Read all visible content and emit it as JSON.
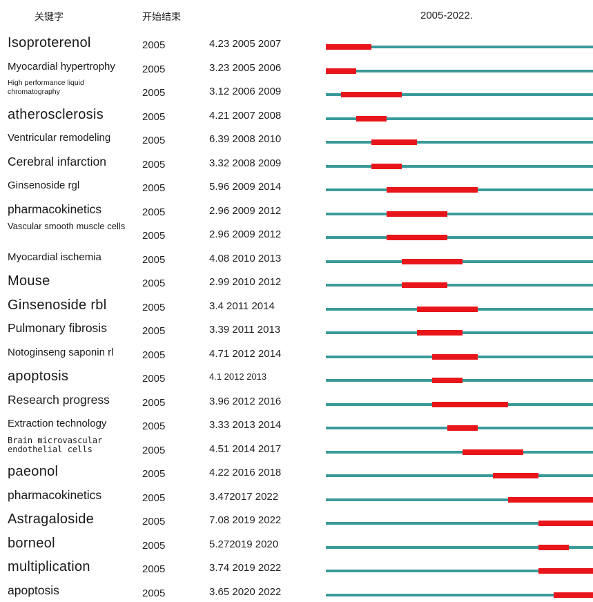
{
  "header": {
    "keyword_col": "关键字",
    "start_end_col": "开始结束",
    "range_label": "2005-2022."
  },
  "colors": {
    "timeline": "#3a9a9a",
    "burst": "#e8161b"
  },
  "chart_data": {
    "type": "bar",
    "x_range": [
      2005,
      2022
    ],
    "rows": [
      {
        "keyword": "Isoproterenol",
        "year": "2005",
        "stat": "4.23 2005 2007",
        "strength": 4.23,
        "begin": 2005,
        "end": 2007
      },
      {
        "keyword": "Myocardial hypertrophy",
        "year": "2005",
        "stat": "3.23 2005 2006",
        "strength": 3.23,
        "begin": 2005,
        "end": 2006
      },
      {
        "keyword": "High performance liquid chromatography",
        "year": "2005",
        "stat": "3.12 2006 2009",
        "strength": 3.12,
        "begin": 2006,
        "end": 2009
      },
      {
        "keyword": "atherosclerosis",
        "year": "2005",
        "stat": "4.21 2007 2008",
        "strength": 4.21,
        "begin": 2007,
        "end": 2008
      },
      {
        "keyword": "Ventricular remodeling",
        "year": "2005",
        "stat": "6.39 2008 2010",
        "strength": 6.39,
        "begin": 2008,
        "end": 2010
      },
      {
        "keyword": "Cerebral infarction",
        "year": "2005",
        "stat": "3.32 2008 2009",
        "strength": 3.32,
        "begin": 2008,
        "end": 2009
      },
      {
        "keyword": "Ginsenoside rgl",
        "year": "2005",
        "stat": "5.96 2009 2014",
        "strength": 5.96,
        "begin": 2009,
        "end": 2014
      },
      {
        "keyword": "pharmacokinetics",
        "year": "2005",
        "stat": "2.96 2009 2012",
        "strength": 2.96,
        "begin": 2009,
        "end": 2012
      },
      {
        "keyword": "Vascular smooth muscle cells",
        "year": "2005",
        "stat": "2.96 2009 2012",
        "strength": 2.96,
        "begin": 2009,
        "end": 2012
      },
      {
        "keyword": "Myocardial ischemia",
        "year": "2005",
        "stat": "4.08 2010 2013",
        "strength": 4.08,
        "begin": 2010,
        "end": 2013
      },
      {
        "keyword": "Mouse",
        "year": "2005",
        "stat": "2.99 2010 2012",
        "strength": 2.99,
        "begin": 2010,
        "end": 2012
      },
      {
        "keyword": "Ginsenoside rbl",
        "year": "2005",
        "stat": "3.4 2011 2014",
        "strength": 3.4,
        "begin": 2011,
        "end": 2014
      },
      {
        "keyword": "Pulmonary fibrosis",
        "year": "2005",
        "stat": "3.39 2011 2013",
        "strength": 3.39,
        "begin": 2011,
        "end": 2013
      },
      {
        "keyword": "Notoginseng saponin rl",
        "year": "2005",
        "stat": "4.71 2012 2014",
        "strength": 4.71,
        "begin": 2012,
        "end": 2014
      },
      {
        "keyword": "apoptosis",
        "year": "2005",
        "stat": "4.1 2012 2013",
        "strength": 4.1,
        "begin": 2012,
        "end": 2013
      },
      {
        "keyword": "Research progress",
        "year": "2005",
        "stat": "3.96 2012 2016",
        "strength": 3.96,
        "begin": 2012,
        "end": 2016
      },
      {
        "keyword": "Extraction technology",
        "year": "2005",
        "stat": "3.33 2013 2014",
        "strength": 3.33,
        "begin": 2013,
        "end": 2014
      },
      {
        "keyword": "Brain microvascular endothelial cells",
        "year": "2005",
        "stat": "4.51 2014 2017",
        "strength": 4.51,
        "begin": 2014,
        "end": 2017
      },
      {
        "keyword": "paeonol",
        "year": "2005",
        "stat": "4.22 2016 2018",
        "strength": 4.22,
        "begin": 2016,
        "end": 2018
      },
      {
        "keyword": "pharmacokinetics",
        "year": "2005",
        "stat": "3.472017 2022",
        "strength": 3.47,
        "begin": 2017,
        "end": 2022
      },
      {
        "keyword": "Astragaloside",
        "year": "2005",
        "stat": "7.08 2019 2022",
        "strength": 7.08,
        "begin": 2019,
        "end": 2022
      },
      {
        "keyword": "borneol",
        "year": "2005",
        "stat": "5.272019 2020",
        "strength": 5.27,
        "begin": 2019,
        "end": 2020
      },
      {
        "keyword": "multiplication",
        "year": "2005",
        "stat": "3.74 2019 2022",
        "strength": 3.74,
        "begin": 2019,
        "end": 2022
      },
      {
        "keyword": "apoptosis",
        "year": "2005",
        "stat": "3.65 2020 2022",
        "strength": 3.65,
        "begin": 2020,
        "end": 2022
      }
    ]
  }
}
